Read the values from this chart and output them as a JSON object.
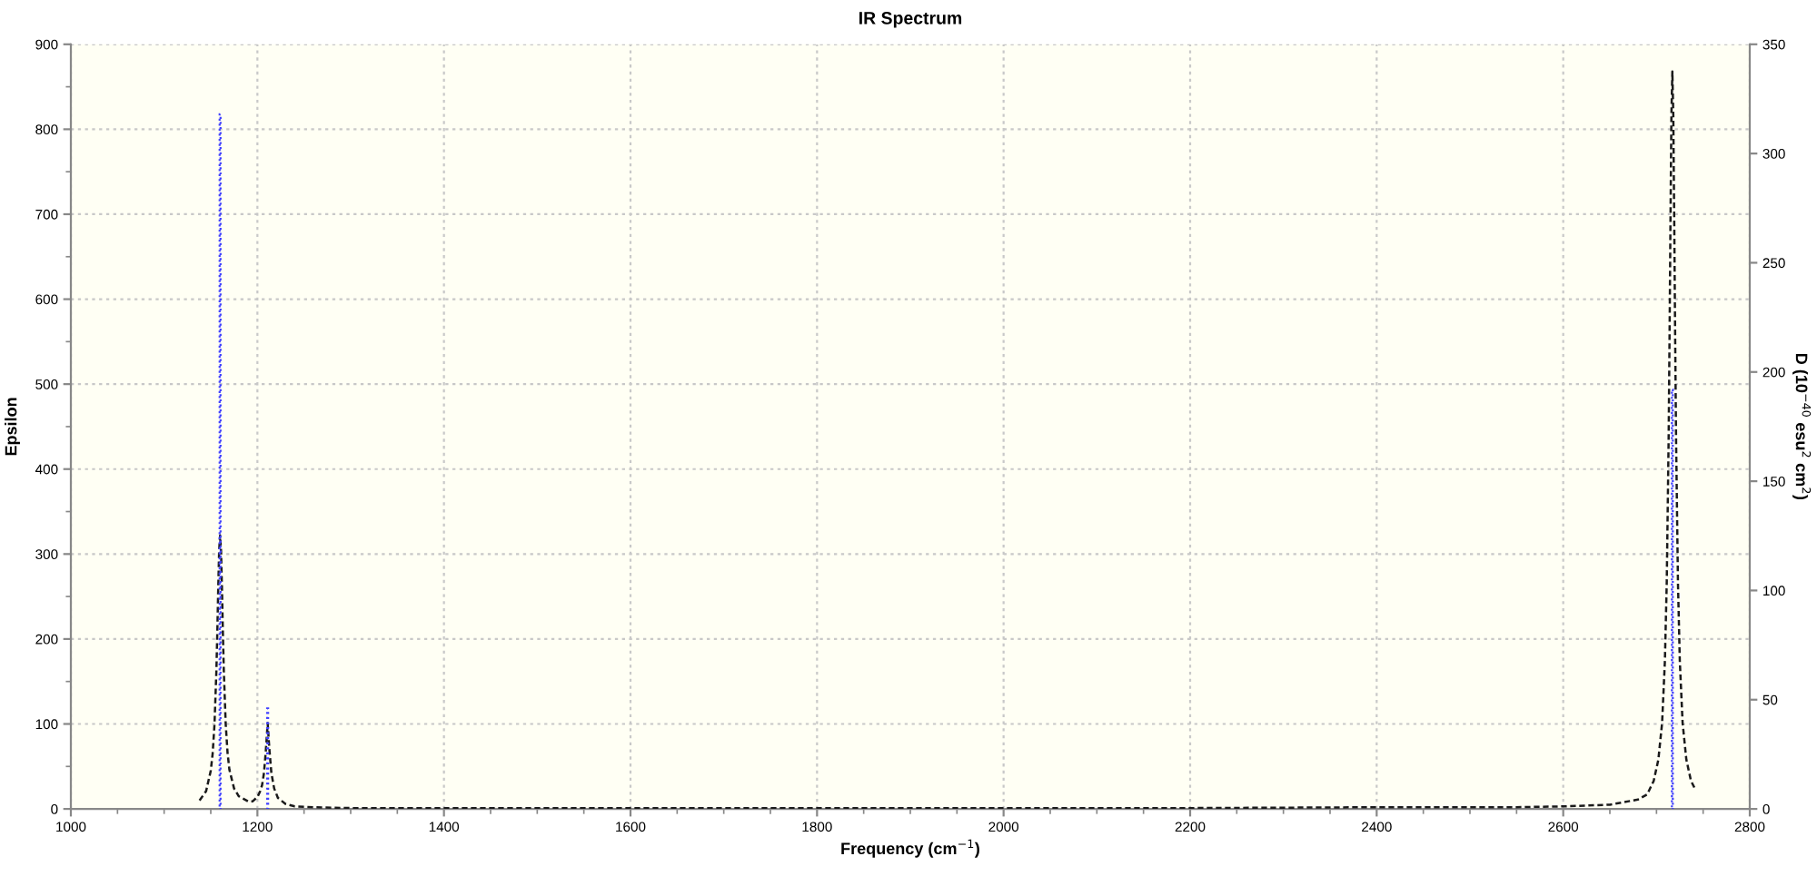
{
  "chart_data": {
    "type": "line",
    "title": "IR Spectrum",
    "xlabel": "Frequency (cm$^{−1}$)",
    "ylabel": "Epsilon",
    "y2label": "D (10$^{−40}$ esu$^{2}$ cm$^{2}$)",
    "xlim": [
      1000,
      2800
    ],
    "ylim": [
      0,
      900
    ],
    "y2lim": [
      0,
      350
    ],
    "xticks": [
      1000,
      {
        "value": 1050,
        "label": null
      },
      {
        "value": 1100,
        "label": null
      },
      {
        "value": 1150,
        "label": null
      },
      1200,
      {
        "value": 1250,
        "label": null
      },
      {
        "value": 1300,
        "label": null
      },
      {
        "value": 1350,
        "label": null
      },
      1400,
      {
        "value": 1450,
        "label": null
      },
      {
        "value": 1500,
        "label": null
      },
      {
        "value": 1550,
        "label": null
      },
      1600,
      {
        "value": 1650,
        "label": null
      },
      {
        "value": 1700,
        "label": null
      },
      {
        "value": 1750,
        "label": null
      },
      1800,
      {
        "value": 1850,
        "label": null
      },
      {
        "value": 1900,
        "label": null
      },
      {
        "value": 1950,
        "label": null
      },
      2000,
      {
        "value": 2050,
        "label": null
      },
      {
        "value": 2100,
        "label": null
      },
      {
        "value": 2150,
        "label": null
      },
      2200,
      {
        "value": 2250,
        "label": null
      },
      {
        "value": 2300,
        "label": null
      },
      {
        "value": 2350,
        "label": null
      },
      2400,
      {
        "value": 2450,
        "label": null
      },
      {
        "value": 2500,
        "label": null
      },
      {
        "value": 2550,
        "label": null
      },
      2600,
      {
        "value": 2650,
        "label": null
      },
      {
        "value": 2700,
        "label": null
      },
      {
        "value": 2750,
        "label": null
      },
      2800
    ],
    "yticks": [
      0,
      {
        "value": 50,
        "label": null
      },
      100,
      {
        "value": 150,
        "label": null
      },
      200,
      {
        "value": 250,
        "label": null
      },
      300,
      {
        "value": 350,
        "label": null
      },
      400,
      {
        "value": 450,
        "label": null
      },
      500,
      {
        "value": 550,
        "label": null
      },
      600,
      {
        "value": 650,
        "label": null
      },
      700,
      {
        "value": 750,
        "label": null
      },
      800,
      {
        "value": 850,
        "label": null
      },
      900
    ],
    "y2ticks": [
      0,
      50,
      100,
      150,
      200,
      250,
      300,
      350
    ],
    "grid": true,
    "series": [
      {
        "color": "#1a1a1a",
        "line_style": "dashed",
        "x": [
          1138,
          1145,
          1150,
          1152,
          1154,
          1156,
          1157,
          1158,
          1159,
          1160,
          1161,
          1162,
          1163,
          1164,
          1166,
          1168,
          1170,
          1175,
          1180,
          1190,
          1195,
          1200,
          1203,
          1205,
          1207,
          1209,
          1210,
          1211,
          1212,
          1213,
          1215,
          1218,
          1222,
          1230,
          1240,
          1260,
          1300,
          1400,
          1600,
          1800,
          2000,
          2200,
          2400,
          2500,
          2550,
          2600,
          2650,
          2680,
          2690,
          2697,
          2702,
          2706,
          2709,
          2711,
          2713,
          2714,
          2715,
          2716,
          2717,
          2718,
          2719,
          2720,
          2721,
          2723,
          2725,
          2728,
          2732,
          2737,
          2742
        ],
        "values": [
          10,
          21,
          45,
          65,
          100,
          162,
          207,
          259,
          304,
          322,
          304,
          259,
          207,
          162,
          100,
          66,
          46,
          24,
          15,
          9,
          9,
          14,
          21,
          28,
          42,
          68,
          84,
          101,
          84,
          68,
          42,
          24,
          13,
          6,
          3,
          2,
          1,
          1,
          1,
          1,
          1,
          1,
          2,
          2,
          2,
          3,
          5,
          11,
          17,
          33,
          58,
          101,
          174,
          267,
          434,
          556,
          694,
          817,
          868,
          817,
          694,
          556,
          434,
          267,
          174,
          101,
          58,
          33,
          22
        ]
      },
      {
        "type": "bar",
        "axis": "y2",
        "color": "#4040ff",
        "line_style": "dotted",
        "x": [
          1160,
          1211,
          2717
        ],
        "values": [
          318,
          46,
          192
        ]
      }
    ]
  }
}
